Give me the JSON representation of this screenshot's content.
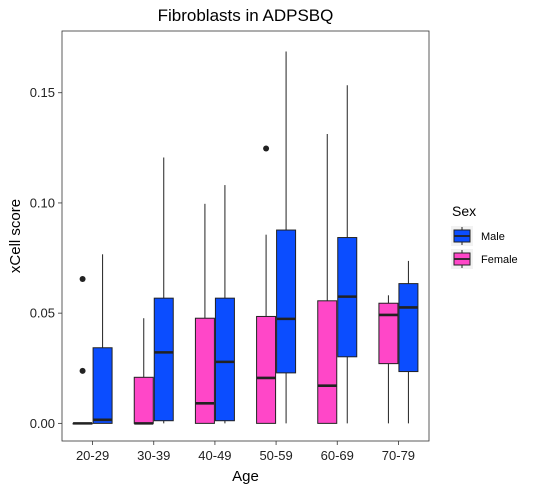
{
  "chart_data": {
    "type": "boxplot",
    "title": "Fibroblasts in ADPSBQ",
    "xlabel": "Age",
    "ylabel": "xCell score",
    "categories": [
      "20-29",
      "30-39",
      "40-49",
      "50-59",
      "60-69",
      "70-79"
    ],
    "ylim": [
      -0.008,
      0.178
    ],
    "yticks": [
      0.0,
      0.05,
      0.1,
      0.15
    ],
    "ytick_labels": [
      "0.00",
      "0.05",
      "0.10",
      "0.15"
    ],
    "grid": false,
    "legend": {
      "title": "Sex",
      "position": "right",
      "entries": [
        {
          "name": "Male",
          "color": "#0b4dff"
        },
        {
          "name": "Female",
          "color": "#ff47c8"
        }
      ]
    },
    "series": [
      {
        "name": "Female",
        "color": "#ff47c8",
        "boxes": [
          {
            "category": "20-29",
            "min": 0.0,
            "q1": 0.0,
            "median": 0.0,
            "q3": 0.0,
            "max": 0.0,
            "outliers": [
              0.0655,
              0.0238
            ]
          },
          {
            "category": "30-39",
            "min": 0.0,
            "q1": 0.0,
            "median": 0.0,
            "q3": 0.0209,
            "max": 0.0477,
            "outliers": []
          },
          {
            "category": "40-49",
            "min": 0.0,
            "q1": 0.0,
            "median": 0.0091,
            "q3": 0.0477,
            "max": 0.0996,
            "outliers": []
          },
          {
            "category": "50-59",
            "min": 0.0,
            "q1": 0.0,
            "median": 0.0206,
            "q3": 0.0485,
            "max": 0.0856,
            "outliers": [
              0.1247
            ]
          },
          {
            "category": "60-69",
            "min": 0.0,
            "q1": 0.0,
            "median": 0.0171,
            "q3": 0.0556,
            "max": 0.1313,
            "outliers": []
          },
          {
            "category": "70-79",
            "min": 0.0,
            "q1": 0.0271,
            "median": 0.0492,
            "q3": 0.0545,
            "max": 0.0581,
            "outliers": []
          }
        ]
      },
      {
        "name": "Male",
        "color": "#0b4dff",
        "boxes": [
          {
            "category": "20-29",
            "min": 0.0,
            "q1": 0.0,
            "median": 0.0016,
            "q3": 0.0343,
            "max": 0.0767,
            "outliers": []
          },
          {
            "category": "30-39",
            "min": 0.0,
            "q1": 0.0012,
            "median": 0.0322,
            "q3": 0.0568,
            "max": 0.1206,
            "outliers": []
          },
          {
            "category": "40-49",
            "min": 0.0,
            "q1": 0.0012,
            "median": 0.0279,
            "q3": 0.0568,
            "max": 0.1081,
            "outliers": []
          },
          {
            "category": "50-59",
            "min": 0.0,
            "q1": 0.0229,
            "median": 0.0474,
            "q3": 0.0877,
            "max": 0.1687,
            "outliers": []
          },
          {
            "category": "60-69",
            "min": 0.0,
            "q1": 0.0302,
            "median": 0.0575,
            "q3": 0.0843,
            "max": 0.1534,
            "outliers": []
          },
          {
            "category": "70-79",
            "min": 0.0,
            "q1": 0.0235,
            "median": 0.0526,
            "q3": 0.0634,
            "max": 0.0737,
            "outliers": []
          }
        ]
      }
    ]
  }
}
